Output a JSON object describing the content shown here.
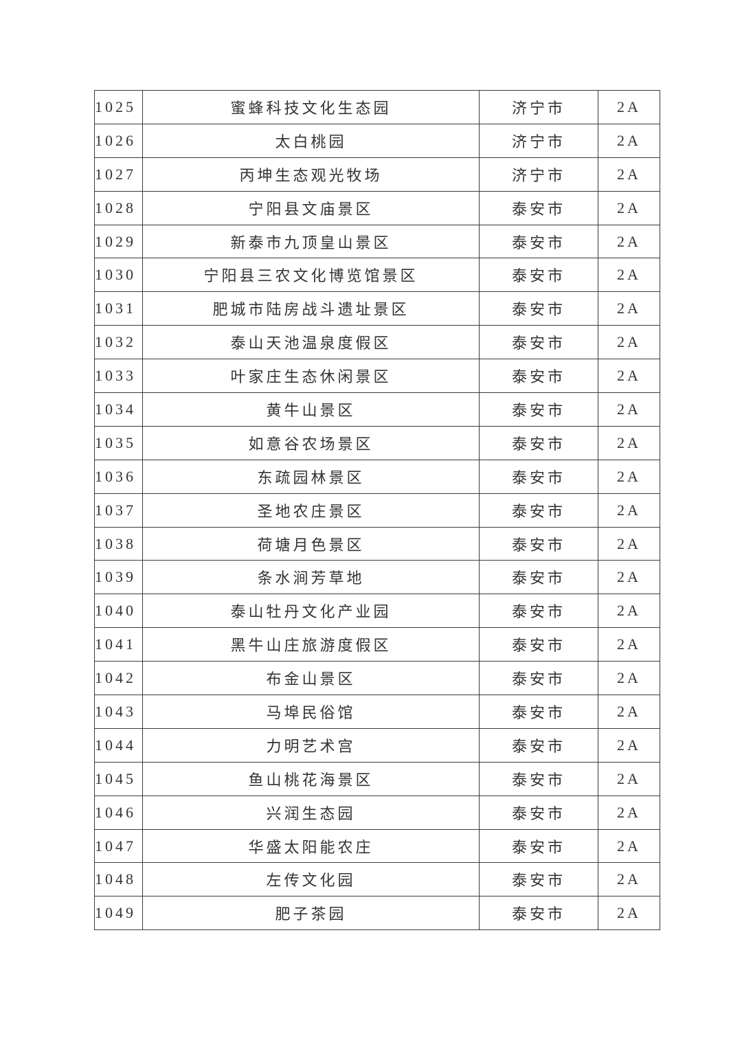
{
  "table": {
    "rows": [
      {
        "no": "1025",
        "name": "蜜蜂科技文化生态园",
        "city": "济宁市",
        "grade": "2A"
      },
      {
        "no": "1026",
        "name": "太白桃园",
        "city": "济宁市",
        "grade": "2A"
      },
      {
        "no": "1027",
        "name": "丙坤生态观光牧场",
        "city": "济宁市",
        "grade": "2A"
      },
      {
        "no": "1028",
        "name": "宁阳县文庙景区",
        "city": "泰安市",
        "grade": "2A"
      },
      {
        "no": "1029",
        "name": "新泰市九顶皇山景区",
        "city": "泰安市",
        "grade": "2A"
      },
      {
        "no": "1030",
        "name": "宁阳县三农文化博览馆景区",
        "city": "泰安市",
        "grade": "2A"
      },
      {
        "no": "1031",
        "name": "肥城市陆房战斗遗址景区",
        "city": "泰安市",
        "grade": "2A"
      },
      {
        "no": "1032",
        "name": "泰山天池温泉度假区",
        "city": "泰安市",
        "grade": "2A"
      },
      {
        "no": "1033",
        "name": "叶家庄生态休闲景区",
        "city": "泰安市",
        "grade": "2A"
      },
      {
        "no": "1034",
        "name": "黄牛山景区",
        "city": "泰安市",
        "grade": "2A"
      },
      {
        "no": "1035",
        "name": "如意谷农场景区",
        "city": "泰安市",
        "grade": "2A"
      },
      {
        "no": "1036",
        "name": "东疏园林景区",
        "city": "泰安市",
        "grade": "2A"
      },
      {
        "no": "1037",
        "name": "圣地农庄景区",
        "city": "泰安市",
        "grade": "2A"
      },
      {
        "no": "1038",
        "name": "荷塘月色景区",
        "city": "泰安市",
        "grade": "2A"
      },
      {
        "no": "1039",
        "name": "条水涧芳草地",
        "city": "泰安市",
        "grade": "2A"
      },
      {
        "no": "1040",
        "name": "泰山牡丹文化产业园",
        "city": "泰安市",
        "grade": "2A"
      },
      {
        "no": "1041",
        "name": "黑牛山庄旅游度假区",
        "city": "泰安市",
        "grade": "2A"
      },
      {
        "no": "1042",
        "name": "布金山景区",
        "city": "泰安市",
        "grade": "2A"
      },
      {
        "no": "1043",
        "name": "马埠民俗馆",
        "city": "泰安市",
        "grade": "2A"
      },
      {
        "no": "1044",
        "name": "力明艺术宫",
        "city": "泰安市",
        "grade": "2A"
      },
      {
        "no": "1045",
        "name": "鱼山桃花海景区",
        "city": "泰安市",
        "grade": "2A"
      },
      {
        "no": "1046",
        "name": "兴润生态园",
        "city": "泰安市",
        "grade": "2A"
      },
      {
        "no": "1047",
        "name": "华盛太阳能农庄",
        "city": "泰安市",
        "grade": "2A"
      },
      {
        "no": "1048",
        "name": "左传文化园",
        "city": "泰安市",
        "grade": "2A"
      },
      {
        "no": "1049",
        "name": "肥子茶园",
        "city": "泰安市",
        "grade": "2A"
      }
    ]
  }
}
